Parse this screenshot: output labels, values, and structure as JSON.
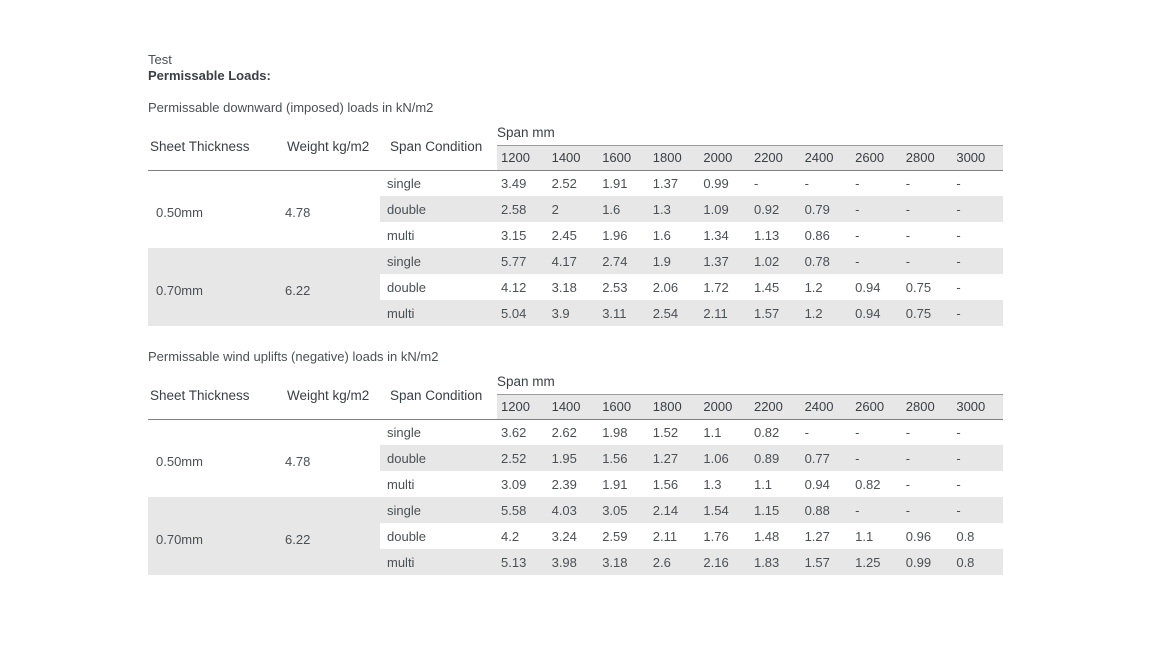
{
  "header": {
    "pretitle": "Test",
    "title": "Permissable Loads:"
  },
  "columns": [
    "Sheet Thickness",
    "Weight kg/m2",
    "Span Condition"
  ],
  "span_header": "Span mm",
  "spans": [
    "1200",
    "1400",
    "1600",
    "1800",
    "2000",
    "2200",
    "2400",
    "2600",
    "2800",
    "3000"
  ],
  "tables": [
    {
      "caption": "Permissable downward (imposed) loads in kN/m2",
      "groups": [
        {
          "thickness": "0.50mm",
          "weight": "4.78",
          "rows": [
            {
              "condition": "single",
              "values": [
                "3.49",
                "2.52",
                "1.91",
                "1.37",
                "0.99",
                "-",
                "-",
                "-",
                "-",
                "-"
              ]
            },
            {
              "condition": "double",
              "values": [
                "2.58",
                "2",
                "1.6",
                "1.3",
                "1.09",
                "0.92",
                "0.79",
                "-",
                "-",
                "-"
              ]
            },
            {
              "condition": "multi",
              "values": [
                "3.15",
                "2.45",
                "1.96",
                "1.6",
                "1.34",
                "1.13",
                "0.86",
                "-",
                "-",
                "-"
              ]
            }
          ]
        },
        {
          "thickness": "0.70mm",
          "weight": "6.22",
          "rows": [
            {
              "condition": "single",
              "values": [
                "5.77",
                "4.17",
                "2.74",
                "1.9",
                "1.37",
                "1.02",
                "0.78",
                "-",
                "-",
                "-"
              ]
            },
            {
              "condition": "double",
              "values": [
                "4.12",
                "3.18",
                "2.53",
                "2.06",
                "1.72",
                "1.45",
                "1.2",
                "0.94",
                "0.75",
                "-"
              ]
            },
            {
              "condition": "multi",
              "values": [
                "5.04",
                "3.9",
                "3.11",
                "2.54",
                "2.11",
                "1.57",
                "1.2",
                "0.94",
                "0.75",
                "-"
              ]
            }
          ]
        }
      ]
    },
    {
      "caption": "Permissable wind uplifts (negative) loads in kN/m2",
      "groups": [
        {
          "thickness": "0.50mm",
          "weight": "4.78",
          "rows": [
            {
              "condition": "single",
              "values": [
                "3.62",
                "2.62",
                "1.98",
                "1.52",
                "1.1",
                "0.82",
                "-",
                "-",
                "-",
                "-"
              ]
            },
            {
              "condition": "double",
              "values": [
                "2.52",
                "1.95",
                "1.56",
                "1.27",
                "1.06",
                "0.89",
                "0.77",
                "-",
                "-",
                "-"
              ]
            },
            {
              "condition": "multi",
              "values": [
                "3.09",
                "2.39",
                "1.91",
                "1.56",
                "1.3",
                "1.1",
                "0.94",
                "0.82",
                "-",
                "-"
              ]
            }
          ]
        },
        {
          "thickness": "0.70mm",
          "weight": "6.22",
          "rows": [
            {
              "condition": "single",
              "values": [
                "5.58",
                "4.03",
                "3.05",
                "2.14",
                "1.54",
                "1.15",
                "0.88",
                "-",
                "-",
                "-"
              ]
            },
            {
              "condition": "double",
              "values": [
                "4.2",
                "3.24",
                "2.59",
                "2.11",
                "1.76",
                "1.48",
                "1.27",
                "1.1",
                "0.96",
                "0.8"
              ]
            },
            {
              "condition": "multi",
              "values": [
                "5.13",
                "3.98",
                "3.18",
                "2.6",
                "2.16",
                "1.83",
                "1.57",
                "1.25",
                "0.99",
                "0.8"
              ]
            }
          ]
        }
      ]
    }
  ],
  "colors": {
    "background": "#ffffff",
    "text": "#4b5055",
    "heading_text": "#3a3f45",
    "row_stripe": "#e7e7e7",
    "rule_light": "#9c9c9c",
    "rule_dark": "#7f7f7f"
  }
}
